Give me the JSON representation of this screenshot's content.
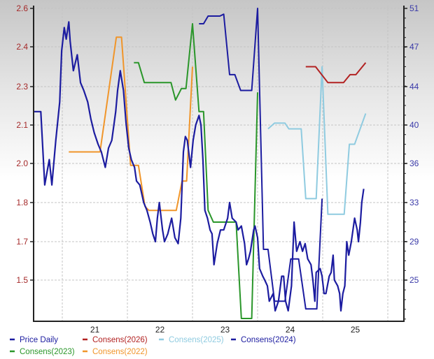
{
  "chart_data": {
    "type": "line",
    "title": "",
    "xlabel": "",
    "ylabel": "",
    "x_tick_labels": [
      "21",
      "22",
      "23",
      "24",
      "25"
    ],
    "x_tick_years": [
      2021.5,
      2022.5,
      2023.5,
      2024.5,
      2025.5
    ],
    "xlim": [
      2020.55,
      2026.25
    ],
    "y_left_ticks": [
      "2.6",
      "2.4",
      "2.3",
      "2.1",
      "2.0",
      "1.8",
      "1.7",
      "1.5"
    ],
    "y_right_ticks": [
      "51",
      "47",
      "44",
      "40",
      "36",
      "33",
      "29",
      "25"
    ],
    "grid": true,
    "legend_position": "bottom",
    "series": [
      {
        "name": "Price Daily",
        "color": "#1c1ca0",
        "axis": "left",
        "x": [
          2020.57,
          2020.67,
          2020.73,
          2020.8,
          2020.84,
          2020.9,
          2020.96,
          2020.99,
          2021.03,
          2021.06,
          2021.1,
          2021.12,
          2021.17,
          2021.23,
          2021.28,
          2021.33,
          2021.39,
          2021.44,
          2021.49,
          2021.55,
          2021.6,
          2021.66,
          2021.71,
          2021.76,
          2021.82,
          2021.85,
          2021.89,
          2021.94,
          2021.98,
          2022.02,
          2022.06,
          2022.11,
          2022.14,
          2022.19,
          2022.25,
          2022.3,
          2022.35,
          2022.39,
          2022.43,
          2022.46,
          2022.49,
          2022.54,
          2022.57,
          2022.62,
          2022.68,
          2022.73,
          2022.78,
          2022.82,
          2022.86,
          2022.89,
          2022.92,
          2022.97,
          2023.01,
          2023.05,
          2023.1,
          2023.13,
          2023.16,
          2023.19,
          2023.23,
          2023.27,
          2023.3,
          2023.33,
          2023.38,
          2023.43,
          2023.48,
          2023.54,
          2023.57,
          2023.61,
          2023.67,
          2023.7,
          2023.75,
          2023.8,
          2023.83,
          2023.86,
          2023.89,
          2023.94,
          2023.96,
          2024.0,
          2024.03,
          2024.08,
          2024.11,
          2024.15,
          2024.18,
          2024.24,
          2024.27,
          2024.32,
          2024.37,
          2024.4,
          2024.43,
          2024.47,
          2024.52,
          2024.56,
          2024.6,
          2024.65,
          2024.69,
          2024.73,
          2024.77,
          2024.82,
          2024.85,
          2024.88,
          2024.9,
          2024.96,
          2024.99,
          2025.02,
          2025.05,
          2025.1,
          2025.13,
          2025.16,
          2025.18,
          2025.23,
          2025.26,
          2025.28,
          2025.31,
          2025.34,
          2025.37,
          2025.4,
          2025.44,
          2025.49,
          2025.53,
          2025.55,
          2025.58,
          2025.6,
          2025.63
        ],
        "y": [
          2.17,
          2.17,
          1.89,
          2.01,
          1.89,
          2.06,
          2.22,
          2.39,
          2.5,
          2.44,
          2.53,
          2.43,
          2.34,
          2.38,
          2.31,
          2.28,
          2.22,
          2.13,
          2.08,
          2.05,
          2.03,
          1.98,
          2.04,
          2.06,
          2.17,
          2.28,
          2.34,
          2.28,
          2.11,
          2.04,
          2.01,
          1.98,
          1.91,
          1.89,
          1.8,
          1.78,
          1.75,
          1.72,
          1.7,
          1.76,
          1.8,
          1.73,
          1.7,
          1.72,
          1.76,
          1.71,
          1.69,
          1.76,
          2.03,
          2.07,
          2.06,
          1.98,
          2.06,
          2.1,
          2.15,
          2.1,
          2.01,
          1.78,
          1.76,
          1.73,
          1.72,
          1.58,
          1.69,
          1.73,
          1.73,
          1.76,
          1.8,
          1.76,
          1.75,
          1.73,
          1.74,
          1.69,
          1.58,
          1.61,
          1.65,
          1.73,
          1.74,
          1.71,
          1.56,
          1.52,
          1.5,
          1.47,
          1.39,
          1.43,
          1.34,
          1.39,
          1.52,
          1.52,
          1.39,
          1.34,
          1.47,
          1.75,
          1.65,
          1.7,
          1.65,
          1.69,
          1.61,
          1.58,
          1.5,
          1.39,
          1.54,
          1.56,
          1.52,
          1.43,
          1.43,
          1.52,
          1.54,
          1.63,
          1.5,
          1.47,
          1.43,
          1.34,
          1.43,
          1.47,
          1.7,
          1.63,
          1.7,
          1.76,
          1.73,
          1.7,
          1.75,
          1.8,
          1.87
        ]
      },
      {
        "name": "Consens(2026)",
        "color": "#b22222",
        "axis": "left",
        "x": [
          2024.74,
          2024.89,
          2025.08,
          2025.32,
          2025.42,
          2025.51,
          2025.66
        ],
        "y": [
          2.35,
          2.35,
          2.31,
          2.31,
          2.33,
          2.33,
          2.36
        ]
      },
      {
        "name": "Consens(2025)",
        "color": "#8fcbe0",
        "axis": "left",
        "x": [
          2024.16,
          2024.26,
          2024.42,
          2024.48,
          2024.67,
          2024.74,
          2024.9,
          2024.99,
          2025.08,
          2025.33,
          2025.41,
          2025.49,
          2025.66
        ],
        "y": [
          2.09,
          2.11,
          2.11,
          2.09,
          2.09,
          1.82,
          1.82,
          2.35,
          1.77,
          1.77,
          2.05,
          2.05,
          2.16
        ]
      },
      {
        "name": "Consens(2024)",
        "color": "#1c1ca0",
        "axis": "left",
        "x": [
          2023.1,
          2023.17,
          2023.24,
          2023.42,
          2023.48,
          2023.57,
          2023.65,
          2023.74,
          2023.91,
          2024.0,
          2024.09,
          2024.16,
          2024.26,
          2024.42,
          2024.51,
          2024.63,
          2024.74,
          2024.91,
          2024.99
        ],
        "y": [
          2.52,
          2.52,
          2.56,
          2.56,
          2.57,
          2.33,
          2.33,
          2.28,
          2.28,
          2.6,
          1.66,
          1.66,
          1.39,
          1.39,
          1.61,
          1.61,
          1.35,
          1.35,
          1.82
        ]
      },
      {
        "name": "Consens(2023)",
        "color": "#2a962a",
        "axis": "left",
        "x": [
          2022.1,
          2022.17,
          2022.26,
          2022.67,
          2022.74,
          2022.83,
          2022.9,
          2023.0,
          2023.1,
          2023.17,
          2023.24,
          2023.32,
          2023.65,
          2023.67,
          2023.75,
          2023.91,
          2024.0
        ],
        "y": [
          2.36,
          2.36,
          2.31,
          2.31,
          2.23,
          2.29,
          2.29,
          2.52,
          2.17,
          2.17,
          1.78,
          1.75,
          1.75,
          1.75,
          1.3,
          1.3,
          2.27
        ]
      },
      {
        "name": "Consens(2022)",
        "color": "#f0952a",
        "axis": "left",
        "x": [
          2021.1,
          2021.58,
          2021.83,
          2021.91,
          2022.05,
          2022.17,
          2022.27,
          2022.33,
          2022.75,
          2022.84,
          2022.91,
          2023.0
        ],
        "y": [
          2.03,
          2.03,
          2.45,
          2.45,
          1.99,
          1.99,
          1.79,
          1.78,
          1.78,
          1.91,
          1.91,
          2.35
        ]
      }
    ]
  }
}
